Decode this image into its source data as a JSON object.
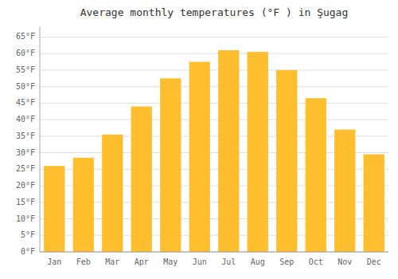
{
  "chart_data": {
    "type": "bar",
    "title": "Average monthly temperatures (°F ) in Şugag",
    "categories": [
      "Jan",
      "Feb",
      "Mar",
      "Apr",
      "May",
      "Jun",
      "Jul",
      "Aug",
      "Sep",
      "Oct",
      "Nov",
      "Dec"
    ],
    "values": [
      26,
      28.5,
      35.5,
      44,
      52.5,
      57.5,
      61,
      60.5,
      55,
      46.5,
      37,
      29.5
    ],
    "color": "#FFBE2D",
    "ylim": [
      0,
      68
    ],
    "yticks": [
      {
        "value": 0,
        "label": "0°F"
      },
      {
        "value": 5,
        "label": "5°F"
      },
      {
        "value": 10,
        "label": "10°F"
      },
      {
        "value": 15,
        "label": "15°F"
      },
      {
        "value": 20,
        "label": "20°F"
      },
      {
        "value": 25,
        "label": "25°F"
      },
      {
        "value": 30,
        "label": "30°F"
      },
      {
        "value": 35,
        "label": "35°F"
      },
      {
        "value": 40,
        "label": "40°F"
      },
      {
        "value": 45,
        "label": "45°F"
      },
      {
        "value": 50,
        "label": "50°F"
      },
      {
        "value": 55,
        "label": "55°F"
      },
      {
        "value": 60,
        "label": "60°F"
      },
      {
        "value": 65,
        "label": "65°F"
      }
    ],
    "grid": true
  }
}
